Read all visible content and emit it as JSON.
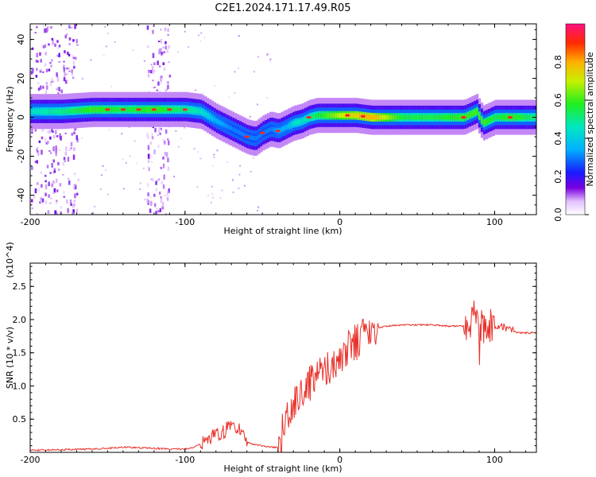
{
  "title": "C2E1.2024.171.17.49.R05",
  "colors": {
    "line": "#e8312a",
    "frame": "#000000",
    "background": "#ffffff"
  },
  "chart_data": [
    {
      "type": "heatmap",
      "xlabel": "Height of straight line (km)",
      "ylabel": "Frequency (Hz)",
      "xlim": [
        -200,
        127
      ],
      "ylim": [
        -50,
        48
      ],
      "x_ticks": [
        "-200",
        "-100",
        "0",
        "100"
      ],
      "y_ticks": [
        "-40",
        "-20",
        "0",
        "20",
        "40"
      ],
      "colorbar": {
        "label": "Normalized spectral amplitude",
        "range": [
          0,
          1
        ],
        "ticks": [
          "0.0",
          "0.2",
          "0.4",
          "0.6",
          "0.8"
        ]
      },
      "ridge": {
        "x": [
          -200,
          -180,
          -160,
          -140,
          -120,
          -100,
          -90,
          -80,
          -70,
          -60,
          -55,
          -50,
          -45,
          -40,
          -35,
          -30,
          -25,
          -20,
          -15,
          -10,
          0,
          10,
          20,
          40,
          60,
          80,
          88,
          92,
          100,
          110,
          127
        ],
        "freq": [
          3,
          3,
          4,
          4,
          4,
          4,
          3,
          -2,
          -6,
          -10,
          -11,
          -8,
          -6,
          -7,
          -5,
          -3,
          -2,
          0,
          1,
          1,
          1,
          1,
          0,
          0,
          0,
          0,
          3,
          -3,
          0,
          0,
          0
        ],
        "amplitude": [
          0.45,
          0.5,
          0.6,
          0.55,
          0.6,
          0.5,
          0.45,
          0.35,
          0.3,
          0.3,
          0.3,
          0.3,
          0.3,
          0.35,
          0.35,
          0.45,
          0.45,
          0.5,
          0.55,
          0.6,
          0.7,
          0.75,
          0.8,
          0.55,
          0.55,
          0.6,
          0.6,
          0.6,
          0.55,
          0.6,
          0.5
        ],
        "peaks_x": [
          -150,
          -140,
          -130,
          -120,
          -110,
          -100,
          -60,
          -50,
          -40,
          -20,
          5,
          15,
          80,
          110
        ]
      },
      "noise_regions_x": [
        [
          -200,
          -170
        ],
        [
          -125,
          -110
        ]
      ]
    },
    {
      "type": "line",
      "xlabel": "Height of straight line (km)",
      "ylabel": "SNR (10 * v/v)",
      "y_scale_label": "(x10^4)",
      "xlim": [
        -200,
        127
      ],
      "ylim": [
        0,
        2.85
      ],
      "x_ticks": [
        "-200",
        "-100",
        "0",
        "100"
      ],
      "y_ticks": [
        "0.5",
        "1.0",
        "1.5",
        "2.0",
        "2.5"
      ],
      "series": [
        {
          "x": [
            -200,
            -180,
            -160,
            -150,
            -140,
            -130,
            -120,
            -110,
            -100,
            -95,
            -90,
            -85,
            -80,
            -75,
            -70,
            -65,
            -60,
            -55,
            -50,
            -45,
            -40,
            -38,
            -35,
            -30,
            -25,
            -20,
            -15,
            -10,
            -5,
            0,
            5,
            10,
            15,
            20,
            25,
            30,
            40,
            50,
            60,
            70,
            80,
            85,
            88,
            90,
            92,
            95,
            100,
            105,
            110,
            115,
            120,
            127
          ],
          "y": [
            0.03,
            0.04,
            0.05,
            0.06,
            0.08,
            0.07,
            0.06,
            0.05,
            0.05,
            0.07,
            0.12,
            0.2,
            0.25,
            0.3,
            0.45,
            0.35,
            0.15,
            0.12,
            0.1,
            0.08,
            0.07,
            0.25,
            0.5,
            0.75,
            0.9,
            1.0,
            1.15,
            1.2,
            1.3,
            1.45,
            1.55,
            1.65,
            1.75,
            1.85,
            1.87,
            1.9,
            1.92,
            1.92,
            1.92,
            1.9,
            1.9,
            1.85,
            2.1,
            1.5,
            2.05,
            1.85,
            1.85,
            1.9,
            1.85,
            1.8,
            1.8,
            1.8
          ]
        }
      ]
    }
  ]
}
